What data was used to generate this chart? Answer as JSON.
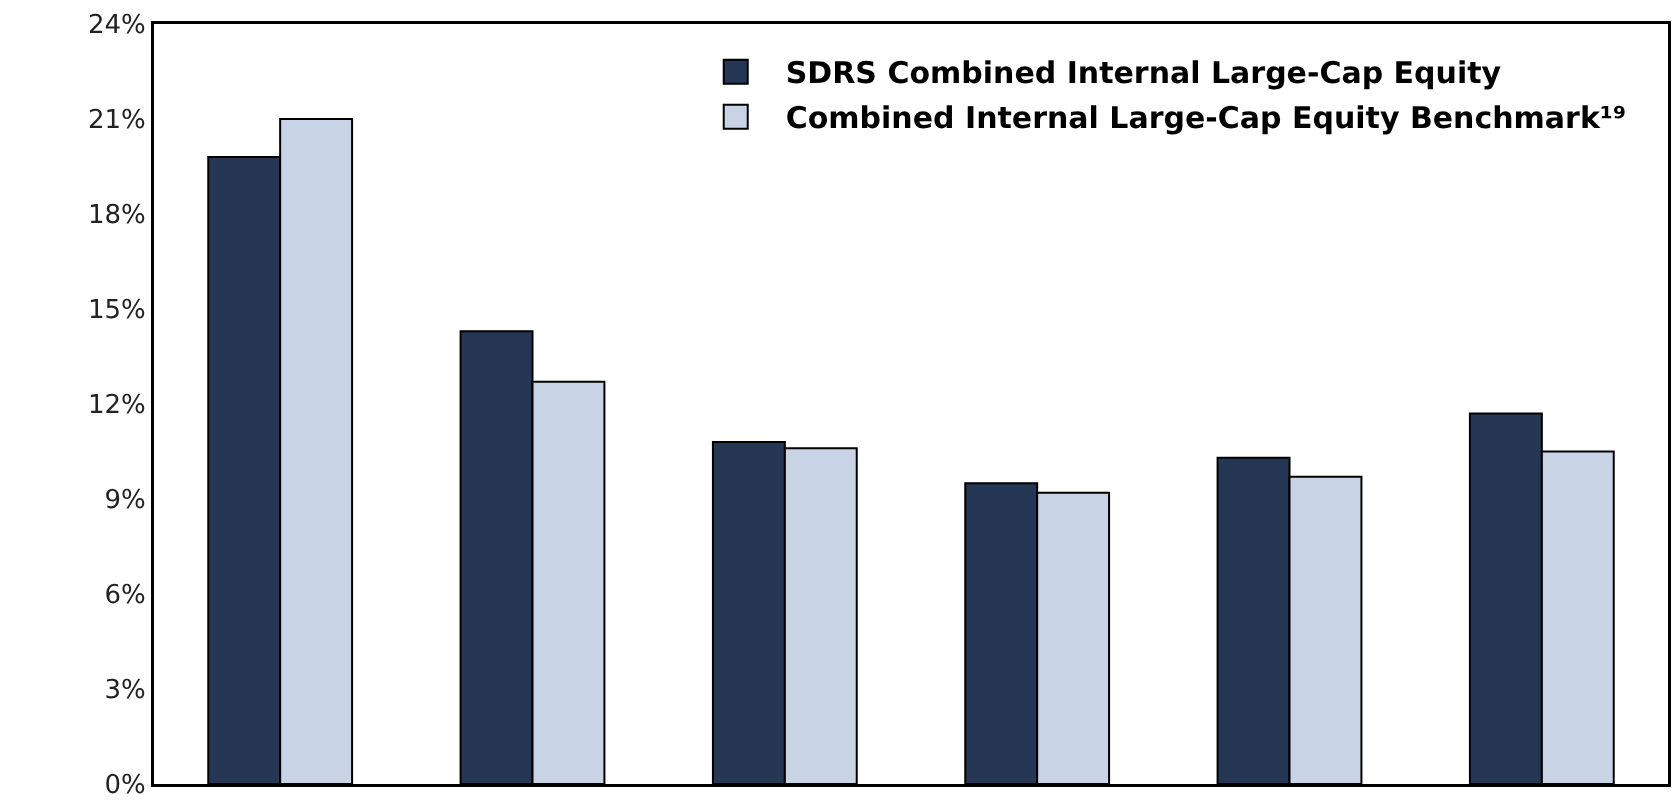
{
  "chart_data": {
    "type": "bar",
    "categories": [
      null,
      null,
      null,
      null,
      null,
      null
    ],
    "series": [
      {
        "name": "SDRS Combined Internal Large-Cap Equity",
        "color": "#263755",
        "values": [
          19.8,
          14.3,
          10.8,
          9.5,
          10.3,
          11.7
        ]
      },
      {
        "name": "Combined Internal Large-Cap Equity Benchmark¹⁹",
        "color": "#c8d4e6",
        "values": [
          21.0,
          12.7,
          10.6,
          9.2,
          9.7,
          10.5
        ]
      }
    ],
    "ylim": [
      0,
      24
    ],
    "yticks": [
      {
        "value": 0,
        "label": "0%"
      },
      {
        "value": 3,
        "label": "3%"
      },
      {
        "value": 6,
        "label": "6%"
      },
      {
        "value": 9,
        "label": "9%"
      },
      {
        "value": 12,
        "label": "12%"
      },
      {
        "value": 15,
        "label": "15%"
      },
      {
        "value": 18,
        "label": "18%"
      },
      {
        "value": 21,
        "label": "21%"
      },
      {
        "value": 24,
        "label": "24%"
      }
    ],
    "grid": false,
    "legend": "top right",
    "tick_labels": "y"
  }
}
